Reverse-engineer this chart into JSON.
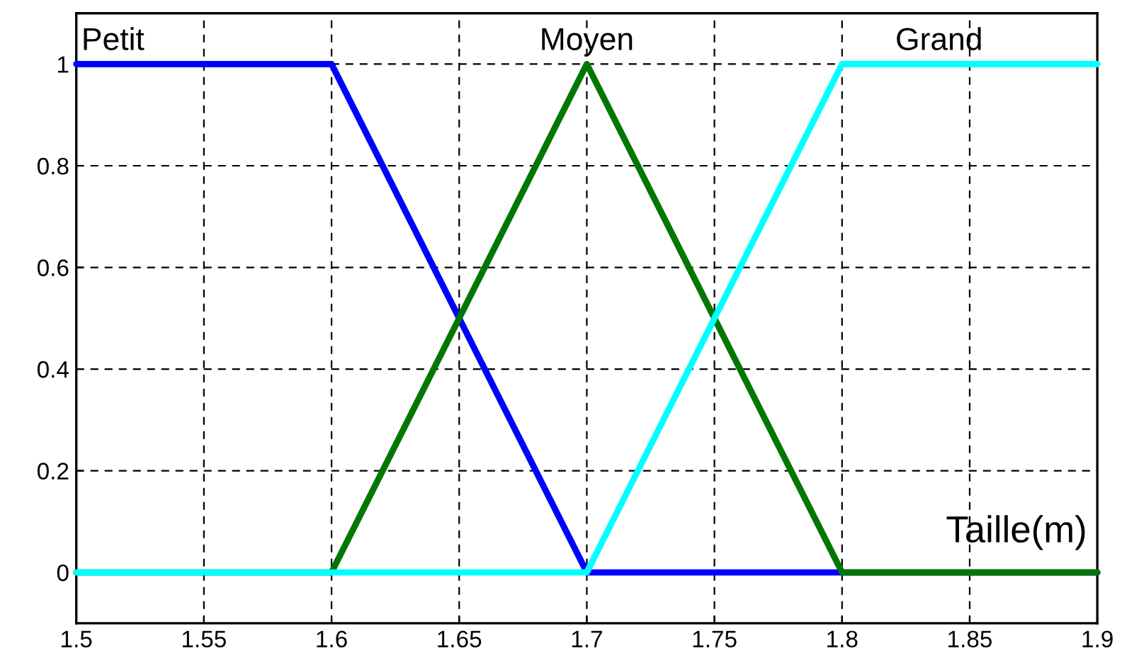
{
  "chart_data": {
    "type": "line",
    "xlabel": "Taille(m)",
    "series": [
      {
        "name": "Petit",
        "color": "#0000ff",
        "x": [
          1.5,
          1.6,
          1.7,
          1.9
        ],
        "values": [
          1,
          1,
          0,
          0
        ]
      },
      {
        "name": "Moyen",
        "color": "#007700",
        "x": [
          1.5,
          1.6,
          1.7,
          1.8,
          1.9
        ],
        "values": [
          0,
          0,
          1,
          0,
          0
        ]
      },
      {
        "name": "Grand",
        "color": "#00ffff",
        "x": [
          1.5,
          1.7,
          1.8,
          1.9
        ],
        "values": [
          0,
          0,
          1,
          1
        ]
      }
    ],
    "xlim": [
      1.5,
      1.9
    ],
    "xticks": [
      1.5,
      1.55,
      1.6,
      1.65,
      1.7,
      1.75,
      1.8,
      1.85,
      1.9
    ],
    "ylim": [
      -0.1,
      1.1
    ],
    "yticks": [
      0,
      0.2,
      0.4,
      0.6,
      0.8,
      1
    ],
    "grid": true,
    "line_style": "solid",
    "marker": "none",
    "legend": false
  }
}
